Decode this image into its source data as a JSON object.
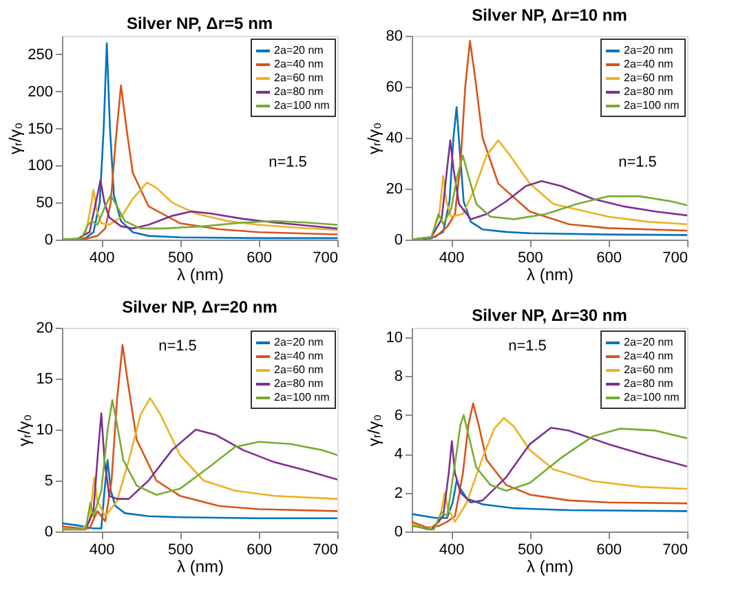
{
  "chart_data": [
    {
      "type": "line",
      "title": "Silver NP, Δr=5 nm",
      "xlabel": "λ (nm)",
      "ylabel": "γᵣ/γ₀",
      "annotations": [
        "n=1.5"
      ],
      "legend": "top right",
      "grid": false,
      "xlim": [
        350,
        700
      ],
      "xticks": [
        400,
        500,
        600,
        700
      ],
      "ylim": [
        0,
        275
      ],
      "yticks": [
        0,
        50,
        100,
        150,
        200,
        250
      ],
      "series": [
        {
          "name": "2a=20 nm",
          "color": "#0072bd",
          "x": [
            350,
            370,
            380,
            390,
            398,
            403,
            407,
            411,
            416,
            425,
            440,
            460,
            500,
            600,
            700
          ],
          "values": [
            0,
            0,
            2,
            10,
            50,
            150,
            265,
            150,
            60,
            25,
            10,
            5,
            3,
            2,
            2
          ]
        },
        {
          "name": "2a=40 nm",
          "color": "#d95319",
          "x": [
            350,
            380,
            395,
            405,
            412,
            418,
            425,
            432,
            440,
            460,
            500,
            550,
            600,
            700
          ],
          "values": [
            0,
            1,
            5,
            15,
            50,
            130,
            208,
            150,
            90,
            45,
            22,
            14,
            10,
            7
          ]
        },
        {
          "name": "2a=60 nm",
          "color": "#edb120",
          "x": [
            350,
            370,
            380,
            386,
            390,
            394,
            400,
            410,
            425,
            440,
            458,
            470,
            490,
            520,
            560,
            600,
            650,
            700
          ],
          "values": [
            0,
            1,
            8,
            40,
            67,
            40,
            22,
            20,
            30,
            55,
            77,
            70,
            50,
            35,
            25,
            20,
            16,
            13
          ]
        },
        {
          "name": "2a=80 nm",
          "color": "#7e2f8e",
          "x": [
            350,
            370,
            385,
            393,
            399,
            404,
            410,
            425,
            440,
            460,
            490,
            515,
            540,
            580,
            620,
            660,
            700
          ],
          "values": [
            0,
            1,
            10,
            50,
            80,
            50,
            30,
            18,
            15,
            20,
            32,
            38,
            35,
            28,
            23,
            19,
            15
          ]
        },
        {
          "name": "2a=100 nm",
          "color": "#77ac30",
          "x": [
            350,
            375,
            383,
            388,
            395,
            405,
            412,
            420,
            430,
            450,
            480,
            530,
            580,
            620,
            660,
            700
          ],
          "values": [
            0,
            2,
            20,
            25,
            20,
            45,
            60,
            45,
            25,
            15,
            15,
            18,
            23,
            25,
            23,
            20
          ]
        }
      ]
    },
    {
      "type": "line",
      "title": "Silver NP, Δr=10 nm",
      "xlabel": "λ (nm)",
      "ylabel": "γᵣ/γ₀",
      "annotations": [
        "n=1.5"
      ],
      "legend": "top right",
      "grid": false,
      "xlim": [
        350,
        700
      ],
      "xticks": [
        400,
        500,
        600,
        700
      ],
      "ylim": [
        0,
        80
      ],
      "yticks": [
        0,
        20,
        40,
        60,
        80
      ],
      "series": [
        {
          "name": "2a=20 nm",
          "color": "#0072bd",
          "x": [
            350,
            375,
            390,
            398,
            403,
            407,
            411,
            416,
            425,
            440,
            470,
            500,
            600,
            700
          ],
          "values": [
            0,
            0.5,
            3,
            15,
            40,
            52,
            35,
            15,
            7,
            4,
            3,
            2.5,
            2,
            1.8
          ]
        },
        {
          "name": "2a=40 nm",
          "color": "#d95319",
          "x": [
            350,
            380,
            395,
            405,
            412,
            418,
            424,
            430,
            440,
            460,
            500,
            550,
            600,
            700
          ],
          "values": [
            0,
            1,
            5,
            10,
            30,
            60,
            78,
            65,
            40,
            22,
            11,
            6,
            4.5,
            3.5
          ]
        },
        {
          "name": "2a=60 nm",
          "color": "#edb120",
          "x": [
            350,
            375,
            385,
            390,
            394,
            400,
            415,
            430,
            445,
            460,
            475,
            500,
            530,
            600,
            650,
            700
          ],
          "values": [
            0,
            1,
            10,
            25,
            15,
            9,
            10,
            20,
            33,
            39,
            33,
            22,
            14,
            9,
            7,
            6
          ]
        },
        {
          "name": "2a=80 nm",
          "color": "#7e2f8e",
          "x": [
            350,
            375,
            388,
            395,
            399,
            403,
            410,
            425,
            445,
            470,
            495,
            515,
            540,
            580,
            620,
            660,
            700
          ],
          "values": [
            0,
            1,
            8,
            28,
            39,
            28,
            14,
            8,
            10,
            15,
            21,
            23,
            21,
            16,
            13,
            11,
            9.5
          ]
        },
        {
          "name": "2a=100 nm",
          "color": "#77ac30",
          "x": [
            350,
            375,
            384,
            390,
            400,
            408,
            415,
            422,
            432,
            450,
            480,
            520,
            560,
            600,
            640,
            680,
            700
          ],
          "values": [
            0,
            1,
            10,
            6,
            12,
            25,
            33,
            25,
            14,
            9,
            8,
            10,
            14,
            17,
            17,
            15,
            13.5
          ]
        }
      ]
    },
    {
      "type": "line",
      "title": "Silver NP, Δr=20 nm",
      "xlabel": "λ (nm)",
      "ylabel": "γᵣ/γ₀",
      "annotations": [
        "n=1.5"
      ],
      "legend": "top right",
      "grid": false,
      "xlim": [
        350,
        700
      ],
      "xticks": [
        400,
        500,
        600,
        700
      ],
      "ylim": [
        0,
        20
      ],
      "yticks": [
        0,
        5,
        10,
        15,
        20
      ],
      "series": [
        {
          "name": "2a=20 nm",
          "color": "#0072bd",
          "x": [
            350,
            370,
            390,
            400,
            404,
            408,
            412,
            418,
            430,
            460,
            500,
            600,
            700
          ],
          "values": [
            0.8,
            0.6,
            0.3,
            0.3,
            4,
            7,
            4,
            2.5,
            1.8,
            1.5,
            1.4,
            1.3,
            1.3
          ]
        },
        {
          "name": "2a=40 nm",
          "color": "#d95319",
          "x": [
            350,
            375,
            385,
            395,
            405,
            413,
            420,
            427,
            433,
            445,
            470,
            500,
            550,
            600,
            700
          ],
          "values": [
            0.5,
            0.3,
            0.3,
            2,
            1,
            5,
            13,
            18.3,
            15,
            9,
            5,
            3.5,
            2.5,
            2.2,
            2
          ]
        },
        {
          "name": "2a=60 nm",
          "color": "#edb120",
          "x": [
            350,
            375,
            385,
            391,
            395,
            405,
            420,
            435,
            450,
            462,
            475,
            500,
            530,
            570,
            620,
            700
          ],
          "values": [
            0.3,
            0.2,
            1,
            5.3,
            3,
            1.5,
            3,
            7,
            11.5,
            13.1,
            11.5,
            7.5,
            5,
            4,
            3.5,
            3.2
          ]
        },
        {
          "name": "2a=80 nm",
          "color": "#7e2f8e",
          "x": [
            350,
            380,
            390,
            396,
            400,
            404,
            410,
            420,
            435,
            460,
            490,
            520,
            545,
            580,
            620,
            660,
            700
          ],
          "values": [
            0.2,
            0.2,
            2,
            8,
            11.6,
            7,
            3.5,
            3.2,
            3.2,
            5,
            8,
            10,
            9.5,
            8,
            6.8,
            6,
            5.1
          ]
        },
        {
          "name": "2a=100 nm",
          "color": "#77ac30",
          "x": [
            350,
            380,
            386,
            390,
            400,
            408,
            414,
            420,
            428,
            445,
            470,
            500,
            540,
            570,
            600,
            640,
            680,
            700
          ],
          "values": [
            0.2,
            0.2,
            2.8,
            1.5,
            4,
            10,
            12.9,
            10.5,
            7,
            4.5,
            3.6,
            4.2,
            6.5,
            8.3,
            8.8,
            8.6,
            8,
            7.5
          ]
        }
      ]
    },
    {
      "type": "line",
      "title": "Silver NP, Δr=30 nm",
      "xlabel": "λ (nm)",
      "ylabel": "γᵣ/γ₀",
      "annotations": [
        "n=1.5"
      ],
      "legend": "top right",
      "grid": false,
      "xlim": [
        350,
        700
      ],
      "xticks": [
        400,
        500,
        600,
        700
      ],
      "ylim": [
        0,
        10.5
      ],
      "yticks": [
        0,
        2,
        4,
        6,
        8,
        10
      ],
      "series": [
        {
          "name": "2a=20 nm",
          "color": "#0072bd",
          "x": [
            350,
            380,
            395,
            402,
            407,
            412,
            420,
            440,
            480,
            550,
            700
          ],
          "values": [
            0.9,
            0.7,
            0.7,
            1.5,
            2.6,
            2.2,
            1.7,
            1.4,
            1.2,
            1.1,
            1.05
          ]
        },
        {
          "name": "2a=40 nm",
          "color": "#d95319",
          "x": [
            350,
            370,
            385,
            395,
            405,
            415,
            422,
            428,
            435,
            445,
            470,
            500,
            550,
            600,
            700
          ],
          "values": [
            0.5,
            0.2,
            0.3,
            0.5,
            0.8,
            3,
            5.5,
            6.6,
            5.5,
            3.7,
            2.4,
            1.9,
            1.6,
            1.5,
            1.45
          ]
        },
        {
          "name": "2a=60 nm",
          "color": "#edb120",
          "x": [
            350,
            370,
            385,
            392,
            396,
            405,
            420,
            440,
            455,
            467,
            480,
            500,
            530,
            580,
            640,
            700
          ],
          "values": [
            0.4,
            0.1,
            0.5,
            2,
            1.2,
            0.5,
            1.5,
            3.8,
            5.3,
            5.85,
            5.4,
            4.2,
            3.2,
            2.6,
            2.3,
            2.2
          ]
        },
        {
          "name": "2a=80 nm",
          "color": "#7e2f8e",
          "x": [
            350,
            375,
            390,
            397,
            401,
            405,
            412,
            425,
            440,
            470,
            500,
            527,
            550,
            600,
            650,
            700
          ],
          "values": [
            0.3,
            0.1,
            0.8,
            3,
            4.65,
            3,
            2,
            1.5,
            1.6,
            2.8,
            4.5,
            5.35,
            5.2,
            4.5,
            3.9,
            3.35
          ]
        },
        {
          "name": "2a=100 nm",
          "color": "#77ac30",
          "x": [
            350,
            378,
            388,
            395,
            405,
            412,
            416,
            422,
            432,
            450,
            470,
            500,
            540,
            580,
            615,
            660,
            700
          ],
          "values": [
            0.3,
            0.1,
            1,
            0.8,
            3.5,
            5.5,
            6,
            5,
            3.3,
            2.4,
            2.1,
            2.5,
            3.8,
            4.9,
            5.3,
            5.2,
            4.8
          ]
        }
      ]
    }
  ]
}
